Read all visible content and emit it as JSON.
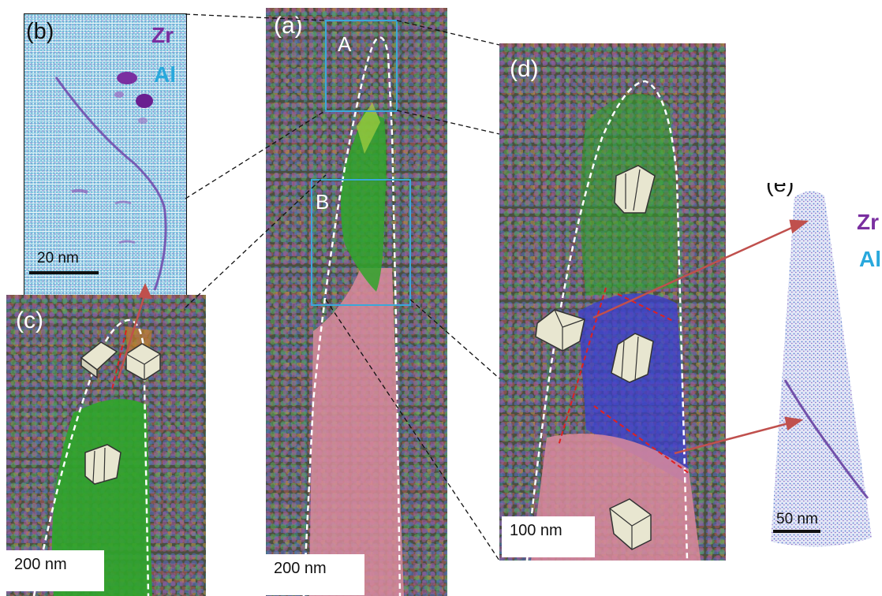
{
  "panels": {
    "a": {
      "label": "(a)",
      "region_a": "A",
      "region_b": "B",
      "scale": "200 nm"
    },
    "b": {
      "label": "(b)",
      "element_1": "Zr",
      "element_2": "Al",
      "scale": "20 nm"
    },
    "c": {
      "label": "(c)",
      "scale": "200 nm"
    },
    "d": {
      "label": "(d)",
      "scale": "100 nm"
    },
    "e": {
      "label": "(e)",
      "element_1": "Zr",
      "element_2": "Al",
      "scale": "50 nm"
    }
  },
  "colors": {
    "zr": "#7a2fa0",
    "al": "#29a8dc",
    "arrow": "#c0504d",
    "grain_boundary": "#e02020",
    "box": "#3aa8d8",
    "phase_green": "#2fa52a",
    "phase_pink": "#d98a9c",
    "phase_blue": "#3b3fd0"
  }
}
